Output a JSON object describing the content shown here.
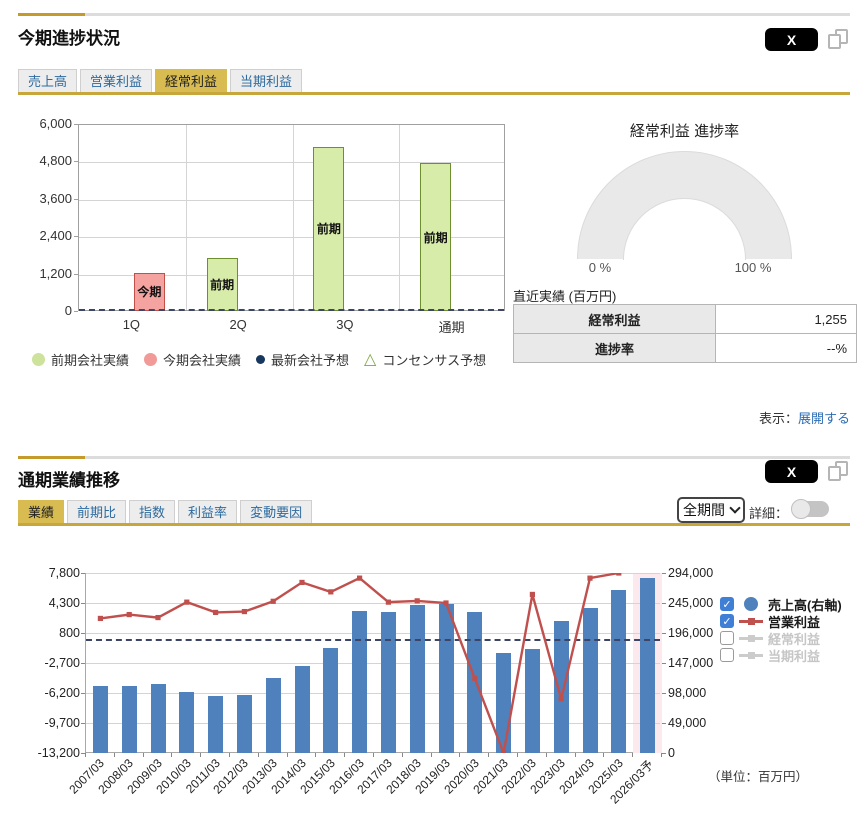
{
  "colors": {
    "accent_gold": "#c49a2a",
    "tab_active_bg": "#d8bc52",
    "tab_underline": "#c7a63b",
    "link_blue": "#2a6bb3",
    "bar_blue": "#4f81bd",
    "line_red": "#c0504d",
    "prev_green_fill": "#d8ecaa",
    "prev_green_border": "#6e8f2f",
    "cur_pink_fill": "#f4a3a1",
    "cur_pink_border": "#c05048",
    "forecast_band_pink": "#fbe9ed",
    "gauge_gray": "#e9e9e9"
  },
  "section1": {
    "title": "今期進捗状況",
    "share_button": "X",
    "tabs": [
      {
        "name": "sales",
        "label": "売上高",
        "active": false
      },
      {
        "name": "operating-profit",
        "label": "営業利益",
        "active": false
      },
      {
        "name": "ordinary-profit",
        "label": "経常利益",
        "active": true
      },
      {
        "name": "net-profit",
        "label": "当期利益",
        "active": false
      }
    ],
    "legend": [
      {
        "label": "前期会社実績",
        "marker": "dot-large",
        "color": "#cde29a"
      },
      {
        "label": "今期会社実績",
        "marker": "dot-large",
        "color": "#f29a98"
      },
      {
        "label": "最新会社予想",
        "marker": "dot-small",
        "color": "#17375e"
      },
      {
        "label": "コンセンサス予想",
        "marker": "triangle",
        "color": "#7ea83c"
      }
    ],
    "gauge": {
      "title": "経常利益 進捗率",
      "min_label": "0 %",
      "max_label": "100 %"
    },
    "recent": {
      "caption": "直近実績 (百万円)",
      "rows": [
        {
          "label": "経常利益",
          "value": "1,255"
        },
        {
          "label": "進捗率",
          "value": "--%"
        }
      ]
    },
    "display_prefix": "表示：",
    "expand_link": "展開する"
  },
  "section2": {
    "title": "通期業績推移",
    "share_button": "X",
    "tabs": [
      {
        "name": "results",
        "label": "業績",
        "active": true
      },
      {
        "name": "yoy",
        "label": "前期比",
        "active": false
      },
      {
        "name": "index",
        "label": "指数",
        "active": false
      },
      {
        "name": "profit-margin",
        "label": "利益率",
        "active": false
      },
      {
        "name": "change-factors",
        "label": "変動要因",
        "active": false
      }
    ],
    "period_select": {
      "value": "全期間"
    },
    "detail_label": "詳細：",
    "detail_toggle_on": false,
    "legend": [
      {
        "label": "売上高(右軸)",
        "checked": true,
        "marker": "dot",
        "color": "#4f81bd",
        "text_color": "#1a1a1a"
      },
      {
        "label": "営業利益",
        "checked": true,
        "marker": "line",
        "color": "#c0504d",
        "text_color": "#1a1a1a"
      },
      {
        "label": "経常利益",
        "checked": false,
        "marker": "line",
        "color": "#cccccc",
        "text_color": "#c6c6c6"
      },
      {
        "label": "当期利益",
        "checked": false,
        "marker": "line",
        "color": "#cccccc",
        "text_color": "#c6c6c6"
      }
    ],
    "unit_note": "（単位：百万円）"
  },
  "chart_data": [
    {
      "type": "bar",
      "title": "今期進捗状況（経常利益）",
      "categories": [
        "1Q",
        "2Q",
        "3Q",
        "通期"
      ],
      "series": [
        {
          "name": "前期会社実績",
          "values": [
            null,
            1730,
            5310,
            4770
          ],
          "bar_labels": [
            null,
            "前期",
            "前期",
            "前期"
          ],
          "fill": "#d8ecaa",
          "border": "#6e8f2f"
        },
        {
          "name": "今期会社実績",
          "values": [
            1255,
            null,
            null,
            null
          ],
          "bar_labels": [
            "今期",
            null,
            null,
            null
          ],
          "fill": "#f4a3a1",
          "border": "#c05048"
        }
      ],
      "ylim": [
        0,
        6000
      ],
      "yticks": [
        6000,
        4800,
        3600,
        2400,
        1200,
        0
      ],
      "grid": true,
      "zero_line_dashed": true,
      "unit": "百万円"
    },
    {
      "type": "bar+line",
      "title": "通期業績推移（業績）",
      "categories": [
        "2007/03",
        "2008/03",
        "2009/03",
        "2010/03",
        "2011/03",
        "2012/03",
        "2013/03",
        "2014/03",
        "2015/03",
        "2016/03",
        "2017/03",
        "2018/03",
        "2019/03",
        "2020/03",
        "2021/03",
        "2022/03",
        "2023/03",
        "2024/03",
        "2025/03",
        "2026/03予"
      ],
      "bar_series": {
        "name": "売上高(右軸)",
        "axis": "right",
        "color": "#4f81bd",
        "values": [
          109000,
          110000,
          112000,
          100000,
          93000,
          95000,
          122000,
          142000,
          172000,
          232000,
          230000,
          242000,
          243000,
          231000,
          163000,
          170000,
          215000,
          237000,
          266000,
          286000
        ]
      },
      "line_series": {
        "name": "営業利益",
        "axis": "left",
        "color": "#c0504d",
        "values": [
          2500,
          2950,
          2600,
          4400,
          3200,
          3300,
          4500,
          6700,
          5600,
          7200,
          4400,
          4550,
          4300,
          -4500,
          -13200,
          5300,
          -6900,
          7200,
          7800,
          null
        ]
      },
      "left_axis": {
        "lim": [
          -13200,
          7800
        ],
        "ticks": [
          7800,
          4300,
          800,
          -2700,
          -6200,
          -9700,
          -13200
        ]
      },
      "right_axis": {
        "lim": [
          0,
          294000
        ],
        "ticks": [
          294000,
          245000,
          196000,
          147000,
          98000,
          49000,
          0
        ]
      },
      "forecast_index": 19,
      "zero_line_dashed": true,
      "grid": true,
      "legend_position": "right"
    }
  ]
}
